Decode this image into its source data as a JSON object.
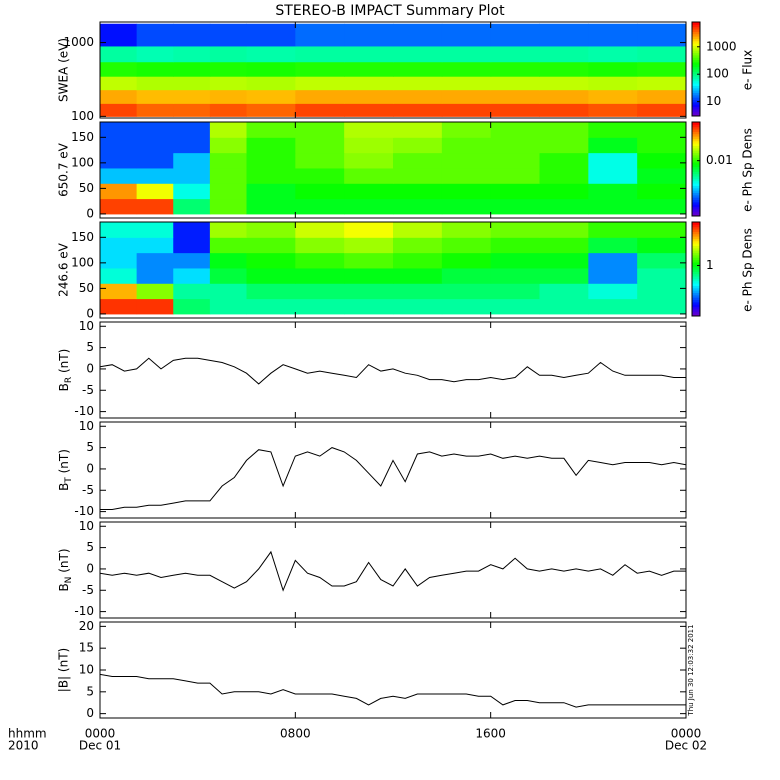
{
  "chart_data": {
    "title": "STEREO-B IMPACT Summary Plot",
    "xlim": [
      0,
      24
    ],
    "xticks": [
      {
        "value": 0,
        "label": "0000"
      },
      {
        "value": 8,
        "label": "0800"
      },
      {
        "value": 16,
        "label": "1600"
      },
      {
        "value": 24,
        "label": "0000"
      }
    ],
    "xlabel_lines": [
      "hhmm",
      "2010"
    ],
    "date_labels": [
      "Dec 01",
      "Dec 02"
    ],
    "timestamp": "Thu Jun 30 12:03:32 2011",
    "x": [
      0,
      0.5,
      1,
      1.5,
      2,
      2.5,
      3,
      3.5,
      4,
      4.5,
      5,
      5.5,
      6,
      6.5,
      7,
      7.5,
      8,
      8.5,
      9,
      9.5,
      10,
      10.5,
      11,
      11.5,
      12,
      12.5,
      13,
      13.5,
      14,
      14.5,
      15,
      15.5,
      16,
      16.5,
      17,
      17.5,
      18,
      18.5,
      19,
      19.5,
      20,
      20.5,
      21,
      21.5,
      22,
      22.5,
      23,
      23.5,
      24
    ],
    "xbins": [
      0,
      1.5,
      3,
      4.5,
      6,
      8,
      10,
      12,
      14,
      16,
      18,
      20,
      22,
      24
    ],
    "panels": [
      {
        "type": "heatmap",
        "ylabel": "SWEA (eV)",
        "ylog": true,
        "ylim": [
          95,
          1900
        ],
        "yticks": [
          100,
          1000
        ],
        "ybins": [
          100,
          150,
          230,
          350,
          550,
          900,
          1800
        ],
        "clim": [
          3,
          8000
        ],
        "clog": true,
        "cticks": [
          10,
          100,
          1000
        ],
        "clabel": "e- Flux",
        "values": [
          [
            5000,
            4000,
            4000,
            4500,
            4000,
            5000,
            5000,
            5000,
            5000,
            5000,
            5000,
            4500,
            5000
          ],
          [
            2500,
            2200,
            2200,
            2300,
            2200,
            2500,
            2500,
            2500,
            2500,
            2500,
            2500,
            2300,
            2500
          ],
          [
            900,
            800,
            800,
            850,
            800,
            900,
            900,
            900,
            900,
            900,
            900,
            850,
            900
          ],
          [
            300,
            280,
            280,
            290,
            280,
            300,
            300,
            300,
            300,
            300,
            300,
            280,
            300
          ],
          [
            80,
            70,
            75,
            80,
            75,
            80,
            80,
            80,
            80,
            80,
            80,
            75,
            80
          ],
          [
            8,
            12,
            12,
            12,
            12,
            15,
            15,
            15,
            15,
            15,
            15,
            15,
            15
          ]
        ]
      },
      {
        "type": "heatmap",
        "ylabel": "650.7 eV",
        "ylog": false,
        "ylim": [
          -8,
          180
        ],
        "yticks": [
          0,
          50,
          100,
          150
        ],
        "ybins": [
          0,
          30,
          60,
          90,
          120,
          150,
          180
        ],
        "clim": [
          0.001,
          0.05
        ],
        "clog": true,
        "cticks": [
          0.01
        ],
        "clabel": "e- Ph Sp Dens",
        "values": [
          [
            0.04,
            0.04,
            0.006,
            0.012,
            0.008,
            0.008,
            0.008,
            0.008,
            0.008,
            0.008,
            0.008,
            0.008,
            0.008
          ],
          [
            0.03,
            0.02,
            0.004,
            0.012,
            0.008,
            0.009,
            0.009,
            0.009,
            0.009,
            0.009,
            0.009,
            0.008,
            0.009
          ],
          [
            0.003,
            0.003,
            0.003,
            0.012,
            0.01,
            0.01,
            0.012,
            0.012,
            0.012,
            0.012,
            0.01,
            0.004,
            0.008
          ],
          [
            0.002,
            0.002,
            0.003,
            0.012,
            0.01,
            0.012,
            0.014,
            0.012,
            0.012,
            0.012,
            0.01,
            0.004,
            0.009
          ],
          [
            0.002,
            0.002,
            0.002,
            0.014,
            0.01,
            0.012,
            0.015,
            0.014,
            0.012,
            0.012,
            0.012,
            0.008,
            0.01
          ],
          [
            0.002,
            0.002,
            0.002,
            0.016,
            0.012,
            0.012,
            0.016,
            0.016,
            0.013,
            0.012,
            0.012,
            0.01,
            0.01
          ]
        ]
      },
      {
        "type": "heatmap",
        "ylabel": "246.6 eV",
        "ylog": false,
        "ylim": [
          -8,
          180
        ],
        "yticks": [
          0,
          50,
          100,
          150
        ],
        "ybins": [
          0,
          30,
          60,
          90,
          120,
          150,
          180
        ],
        "clim": [
          0.2,
          4
        ],
        "clog": true,
        "cticks": [
          1
        ],
        "clabel": "e- Ph Sp Dens",
        "values": [
          [
            3.5,
            3.5,
            0.8,
            0.7,
            0.7,
            0.7,
            0.7,
            0.7,
            0.7,
            0.7,
            0.7,
            0.7,
            0.7
          ],
          [
            2.5,
            1.5,
            0.7,
            0.7,
            0.8,
            0.8,
            0.8,
            0.8,
            0.8,
            0.8,
            0.7,
            0.6,
            0.7
          ],
          [
            0.6,
            0.4,
            0.5,
            0.9,
            1,
            1,
            1,
            1,
            0.9,
            0.9,
            0.9,
            0.4,
            0.7
          ],
          [
            0.5,
            0.4,
            0.4,
            1,
            1.1,
            1.2,
            1.3,
            1.2,
            1.1,
            1,
            1,
            0.4,
            0.8
          ],
          [
            0.5,
            0.5,
            0.3,
            1.3,
            1.3,
            1.5,
            1.6,
            1.4,
            1.3,
            1.2,
            1.2,
            0.9,
            1
          ],
          [
            0.6,
            0.6,
            0.3,
            1.6,
            1.5,
            1.8,
            2,
            1.7,
            1.5,
            1.4,
            1.4,
            1.2,
            1.2
          ]
        ]
      },
      {
        "type": "line",
        "ylabel": {
          "main": "B",
          "sub": "R",
          "unit": " (nT)"
        },
        "ylim": [
          -11.5,
          11
        ],
        "yticks": [
          -10,
          -5,
          0,
          5,
          10
        ],
        "color": "#000000",
        "values": [
          0.5,
          1,
          -0.5,
          0,
          2.5,
          0,
          2,
          2.5,
          2.5,
          2,
          1.5,
          0.5,
          -1,
          -3.5,
          -1,
          1,
          0,
          -1,
          -0.5,
          -1,
          -1.5,
          -2,
          1,
          -0.5,
          0,
          -1,
          -1.5,
          -2.5,
          -2.5,
          -3,
          -2.5,
          -2.5,
          -2,
          -2.5,
          -2,
          0.5,
          -1.5,
          -1.5,
          -2,
          -1.5,
          -1,
          1.5,
          -0.5,
          -1.5,
          -1.5,
          -1.5,
          -1.5,
          -2,
          -2
        ]
      },
      {
        "type": "line",
        "ylabel": {
          "main": "B",
          "sub": "T",
          "unit": " (nT)"
        },
        "ylim": [
          -11.5,
          11
        ],
        "yticks": [
          -10,
          -5,
          0,
          5,
          10
        ],
        "color": "#000000",
        "values": [
          -9.5,
          -9.5,
          -9,
          -9,
          -8.5,
          -8.5,
          -8,
          -7.5,
          -7.5,
          -7.5,
          -4,
          -2,
          2,
          4.5,
          4,
          -4,
          3,
          4,
          3,
          5,
          4,
          2,
          -1,
          -4,
          2,
          -3,
          3.5,
          4,
          3,
          3.5,
          3,
          3,
          3.5,
          2.5,
          3,
          2.5,
          3,
          2.5,
          2.5,
          -1.5,
          2,
          1.5,
          1,
          1.5,
          1.5,
          1.5,
          1,
          1.5,
          1
        ]
      },
      {
        "type": "line",
        "ylabel": {
          "main": "B",
          "sub": "N",
          "unit": " (nT)"
        },
        "ylim": [
          -11.5,
          11
        ],
        "yticks": [
          -10,
          -5,
          0,
          5,
          10
        ],
        "color": "#000000",
        "values": [
          -1,
          -1.5,
          -1,
          -1.5,
          -1,
          -2,
          -1.5,
          -1,
          -1.5,
          -1.5,
          -3,
          -4.5,
          -3,
          0,
          4,
          -5,
          2,
          -1,
          -2,
          -4,
          -4,
          -3,
          1.5,
          -2.5,
          -4,
          0,
          -4,
          -2,
          -1.5,
          -1,
          -0.5,
          -0.5,
          1,
          0,
          2.5,
          0,
          -0.5,
          0,
          -0.5,
          0,
          -0.5,
          0,
          -1.5,
          1,
          -1,
          -0.5,
          -1.5,
          -0.5,
          -0.5
        ]
      },
      {
        "type": "line",
        "ylabel": "|B| (nT)",
        "ylim": [
          -1,
          21
        ],
        "yticks": [
          0,
          5,
          10,
          15,
          20
        ],
        "color": "#000000",
        "values": [
          9,
          8.5,
          8.5,
          8.5,
          8,
          8,
          8,
          7.5,
          7,
          7,
          4.5,
          5,
          5,
          5,
          4.5,
          5.5,
          4.5,
          4.5,
          4.5,
          4.5,
          4,
          3.5,
          2,
          3.5,
          4,
          3.5,
          4.5,
          4.5,
          4.5,
          4.5,
          4.5,
          4,
          4,
          2,
          3,
          3,
          2.5,
          2.5,
          2.5,
          1.5,
          2,
          2,
          2,
          2,
          2,
          2,
          2,
          2,
          2
        ]
      }
    ]
  }
}
